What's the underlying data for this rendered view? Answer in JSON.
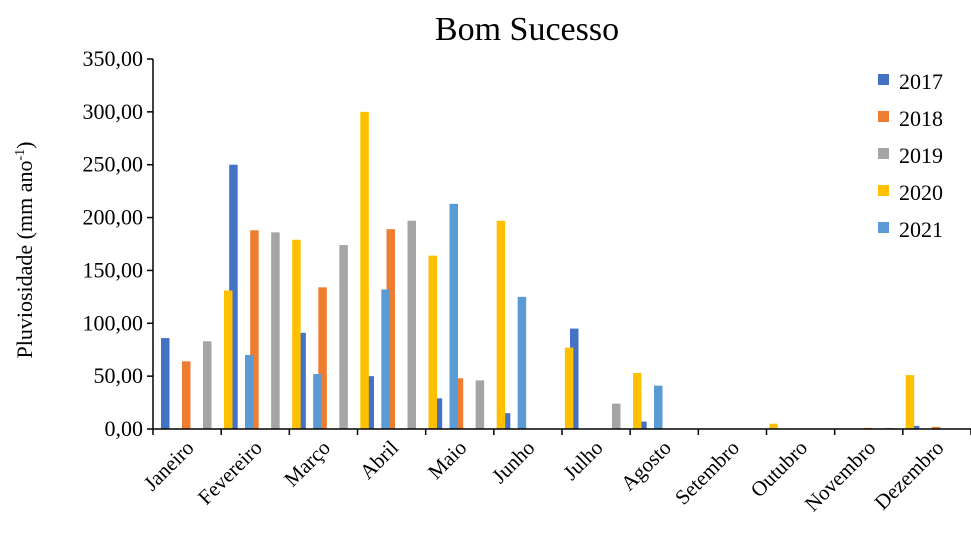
{
  "chart_data": {
    "type": "bar",
    "title": "Bom Sucesso",
    "ylabel": "Pluviosidade (mm ano",
    "ylabel_sup": "-1",
    "ylabel_close": ")",
    "xlabel": "",
    "ylim": [
      0,
      350
    ],
    "yticks": [
      "0,00",
      "50,00",
      "100,00",
      "150,00",
      "200,00",
      "250,00",
      "300,00",
      "350,00"
    ],
    "ytick_values": [
      0,
      50,
      100,
      150,
      200,
      250,
      300,
      350
    ],
    "categories": [
      "Janeiro",
      "Fevereiro",
      "Março",
      "Abril",
      "Maio",
      "Junho",
      "Julho",
      "Agosto",
      "Setembro",
      "Outubro",
      "Novembro",
      "Dezembro"
    ],
    "legend_position": "top-right",
    "series": [
      {
        "name": "2017",
        "color": "#4472C4",
        "values": [
          86,
          250,
          91,
          50,
          29,
          15,
          95,
          7,
          0,
          0,
          0,
          3
        ]
      },
      {
        "name": "2018",
        "color": "#ED7D31",
        "values": [
          64,
          188,
          134,
          189,
          48,
          0,
          0,
          0,
          0,
          0,
          1,
          2
        ]
      },
      {
        "name": "2019",
        "color": "#A5A5A5",
        "values": [
          83,
          186,
          174,
          197,
          46,
          0,
          24,
          0,
          0,
          0,
          1,
          0
        ]
      },
      {
        "name": "2020",
        "color": "#FFC000",
        "values": [
          131,
          179,
          300,
          164,
          197,
          77,
          53,
          0,
          5,
          0,
          51,
          0
        ]
      },
      {
        "name": "2021",
        "color": "#5B9BD5",
        "values": [
          70,
          52,
          132,
          213,
          125,
          0,
          41,
          0,
          0,
          0,
          0,
          22
        ]
      }
    ]
  }
}
